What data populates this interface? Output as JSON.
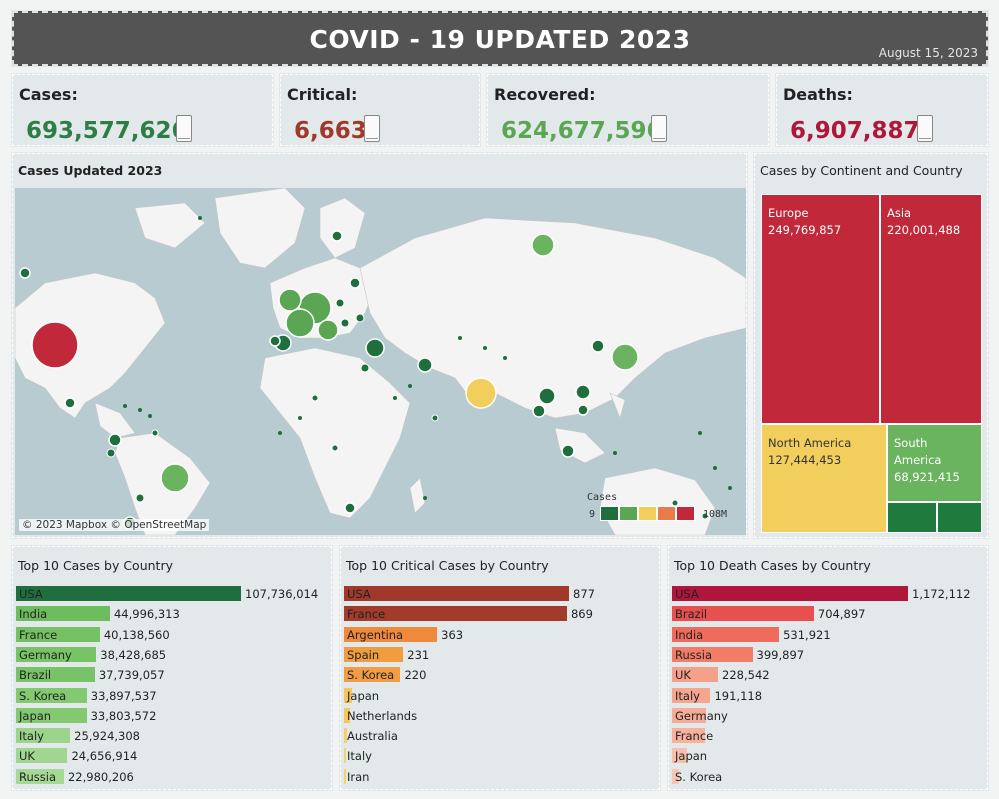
{
  "header": {
    "title": "COVID - 19 UPDATED 2023",
    "date": "August 15, 2023"
  },
  "kpis": [
    {
      "label": "Cases:",
      "value": "693,577,626",
      "color": "#2e7d46"
    },
    {
      "label": "Critical:",
      "value": "6,663",
      "color": "#a0392a"
    },
    {
      "label": "Recovered:",
      "value": "624,677,596",
      "color": "#5aa653"
    },
    {
      "label": "Deaths:",
      "value": "6,907,887",
      "color": "#b0163c"
    }
  ],
  "map": {
    "title": "Cases Updated 2023",
    "attribution": "© 2023 Mapbox © OpenStreetMap",
    "legend": {
      "title": "Cases",
      "min": "9",
      "max": "108M",
      "colors": [
        "#1f6f3e",
        "#5aa653",
        "#f2cf5d",
        "#e97b4a",
        "#c1283a"
      ]
    }
  },
  "treemap": {
    "title": "Cases by Continent and Country",
    "continents": [
      {
        "name": "Europe",
        "value": "249,769,857",
        "color": "#c1283a",
        "text": "#ffffff"
      },
      {
        "name": "Asia",
        "value": "220,001,488",
        "color": "#c1283a",
        "text": "#ffffff"
      },
      {
        "name": "North America",
        "value": "127,444,453",
        "color": "#f2cf5d",
        "text": "#333333"
      },
      {
        "name": "South America",
        "value": "68,921,415",
        "color": "#6ab35f",
        "text": "#ffffff"
      }
    ]
  },
  "chart_data": [
    {
      "type": "bar",
      "title": "Top 10 Cases by Country",
      "categories": [
        "USA",
        "India",
        "France",
        "Germany",
        "Brazil",
        "S. Korea",
        "Japan",
        "Italy",
        "UK",
        "Russia"
      ],
      "values": [
        107736014,
        44996313,
        40138560,
        38428685,
        37739057,
        33897537,
        33803572,
        25924308,
        24656914,
        22980206
      ],
      "labels": [
        "107,736,014",
        "44,996,313",
        "40,138,560",
        "38,428,685",
        "37,739,057",
        "33,897,537",
        "33,803,572",
        "25,924,308",
        "24,656,914",
        "22,980,206"
      ],
      "colors": [
        "#1f6f3e",
        "#6dbc5e",
        "#74c163",
        "#77c366",
        "#78c367",
        "#82c96f",
        "#82c96f",
        "#9bd48a",
        "#a0d68f",
        "#a6d995"
      ]
    },
    {
      "type": "bar",
      "title": "Top 10 Critical Cases by Country",
      "categories": [
        "USA",
        "France",
        "Argentina",
        "Spain",
        "S. Korea",
        "Japan",
        "Netherlands",
        "Australia",
        "Italy",
        "Iran"
      ],
      "values": [
        877,
        869,
        363,
        231,
        220,
        30,
        22,
        10,
        8,
        6
      ],
      "labels": [
        "877",
        "869",
        "363",
        "231",
        "220",
        "",
        "",
        "",
        "",
        ""
      ],
      "colors": [
        "#a0392a",
        "#a23b2a",
        "#ef8a3c",
        "#f29c40",
        "#f29d41",
        "#f6c45a",
        "#f6c65b",
        "#f7cf66",
        "#f7d16b",
        "#f7d26d"
      ]
    },
    {
      "type": "bar",
      "title": "Top 10 Death Cases by Country",
      "categories": [
        "USA",
        "Brazil",
        "India",
        "Russia",
        "UK",
        "Italy",
        "Germany",
        "France",
        "Japan",
        "S. Korea"
      ],
      "values": [
        1172112,
        704897,
        531921,
        399897,
        228542,
        191118,
        170000,
        165000,
        74000,
        35000
      ],
      "labels": [
        "1,172,112",
        "704,897",
        "531,921",
        "399,897",
        "228,542",
        "191,118",
        "",
        "",
        "",
        ""
      ],
      "colors": [
        "#b0163c",
        "#e8504f",
        "#ef6b5c",
        "#f17d68",
        "#f5a08a",
        "#f6a58f",
        "#f7ac97",
        "#f7b19c",
        "#f8bfae",
        "#f9c6b6"
      ]
    }
  ]
}
